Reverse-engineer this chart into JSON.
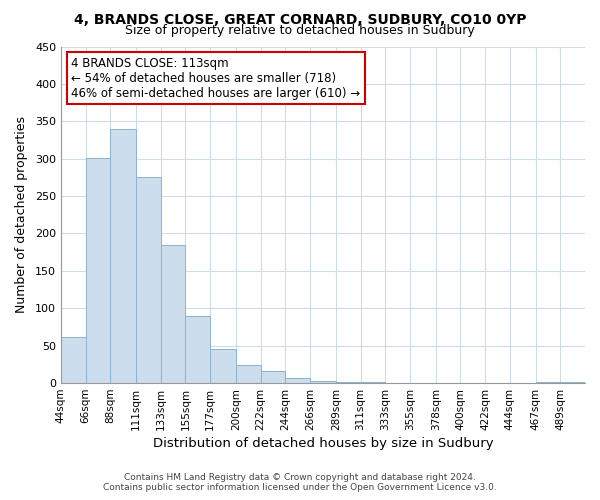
{
  "title": "4, BRANDS CLOSE, GREAT CORNARD, SUDBURY, CO10 0YP",
  "subtitle": "Size of property relative to detached houses in Sudbury",
  "xlabel": "Distribution of detached houses by size in Sudbury",
  "ylabel": "Number of detached properties",
  "footer_line1": "Contains HM Land Registry data © Crown copyright and database right 2024.",
  "footer_line2": "Contains public sector information licensed under the Open Government Licence v3.0.",
  "bar_labels": [
    "44sqm",
    "66sqm",
    "88sqm",
    "111sqm",
    "133sqm",
    "155sqm",
    "177sqm",
    "200sqm",
    "222sqm",
    "244sqm",
    "266sqm",
    "289sqm",
    "311sqm",
    "333sqm",
    "355sqm",
    "378sqm",
    "400sqm",
    "422sqm",
    "444sqm",
    "467sqm",
    "489sqm"
  ],
  "bar_values": [
    62,
    301,
    340,
    275,
    184,
    90,
    45,
    24,
    16,
    7,
    3,
    1,
    1,
    0,
    0,
    0,
    0,
    0,
    0,
    1,
    1
  ],
  "bar_color": "#ccdded",
  "bar_edge_color": "#8ab4cc",
  "annotation_title": "4 BRANDS CLOSE: 113sqm",
  "annotation_line2": "← 54% of detached houses are smaller (718)",
  "annotation_line3": "46% of semi-detached houses are larger (610) →",
  "annotation_box_edge": "#cc0000",
  "annotation_box_face": "#ffffff",
  "property_size": 113,
  "bin_edges": [
    44,
    66,
    88,
    111,
    133,
    155,
    177,
    200,
    222,
    244,
    266,
    289,
    311,
    333,
    355,
    378,
    400,
    422,
    444,
    467,
    489,
    511
  ],
  "ylim": [
    0,
    450
  ],
  "yticks": [
    0,
    50,
    100,
    150,
    200,
    250,
    300,
    350,
    400,
    450
  ],
  "background_color": "#ffffff",
  "grid_color": "#ccdde8"
}
